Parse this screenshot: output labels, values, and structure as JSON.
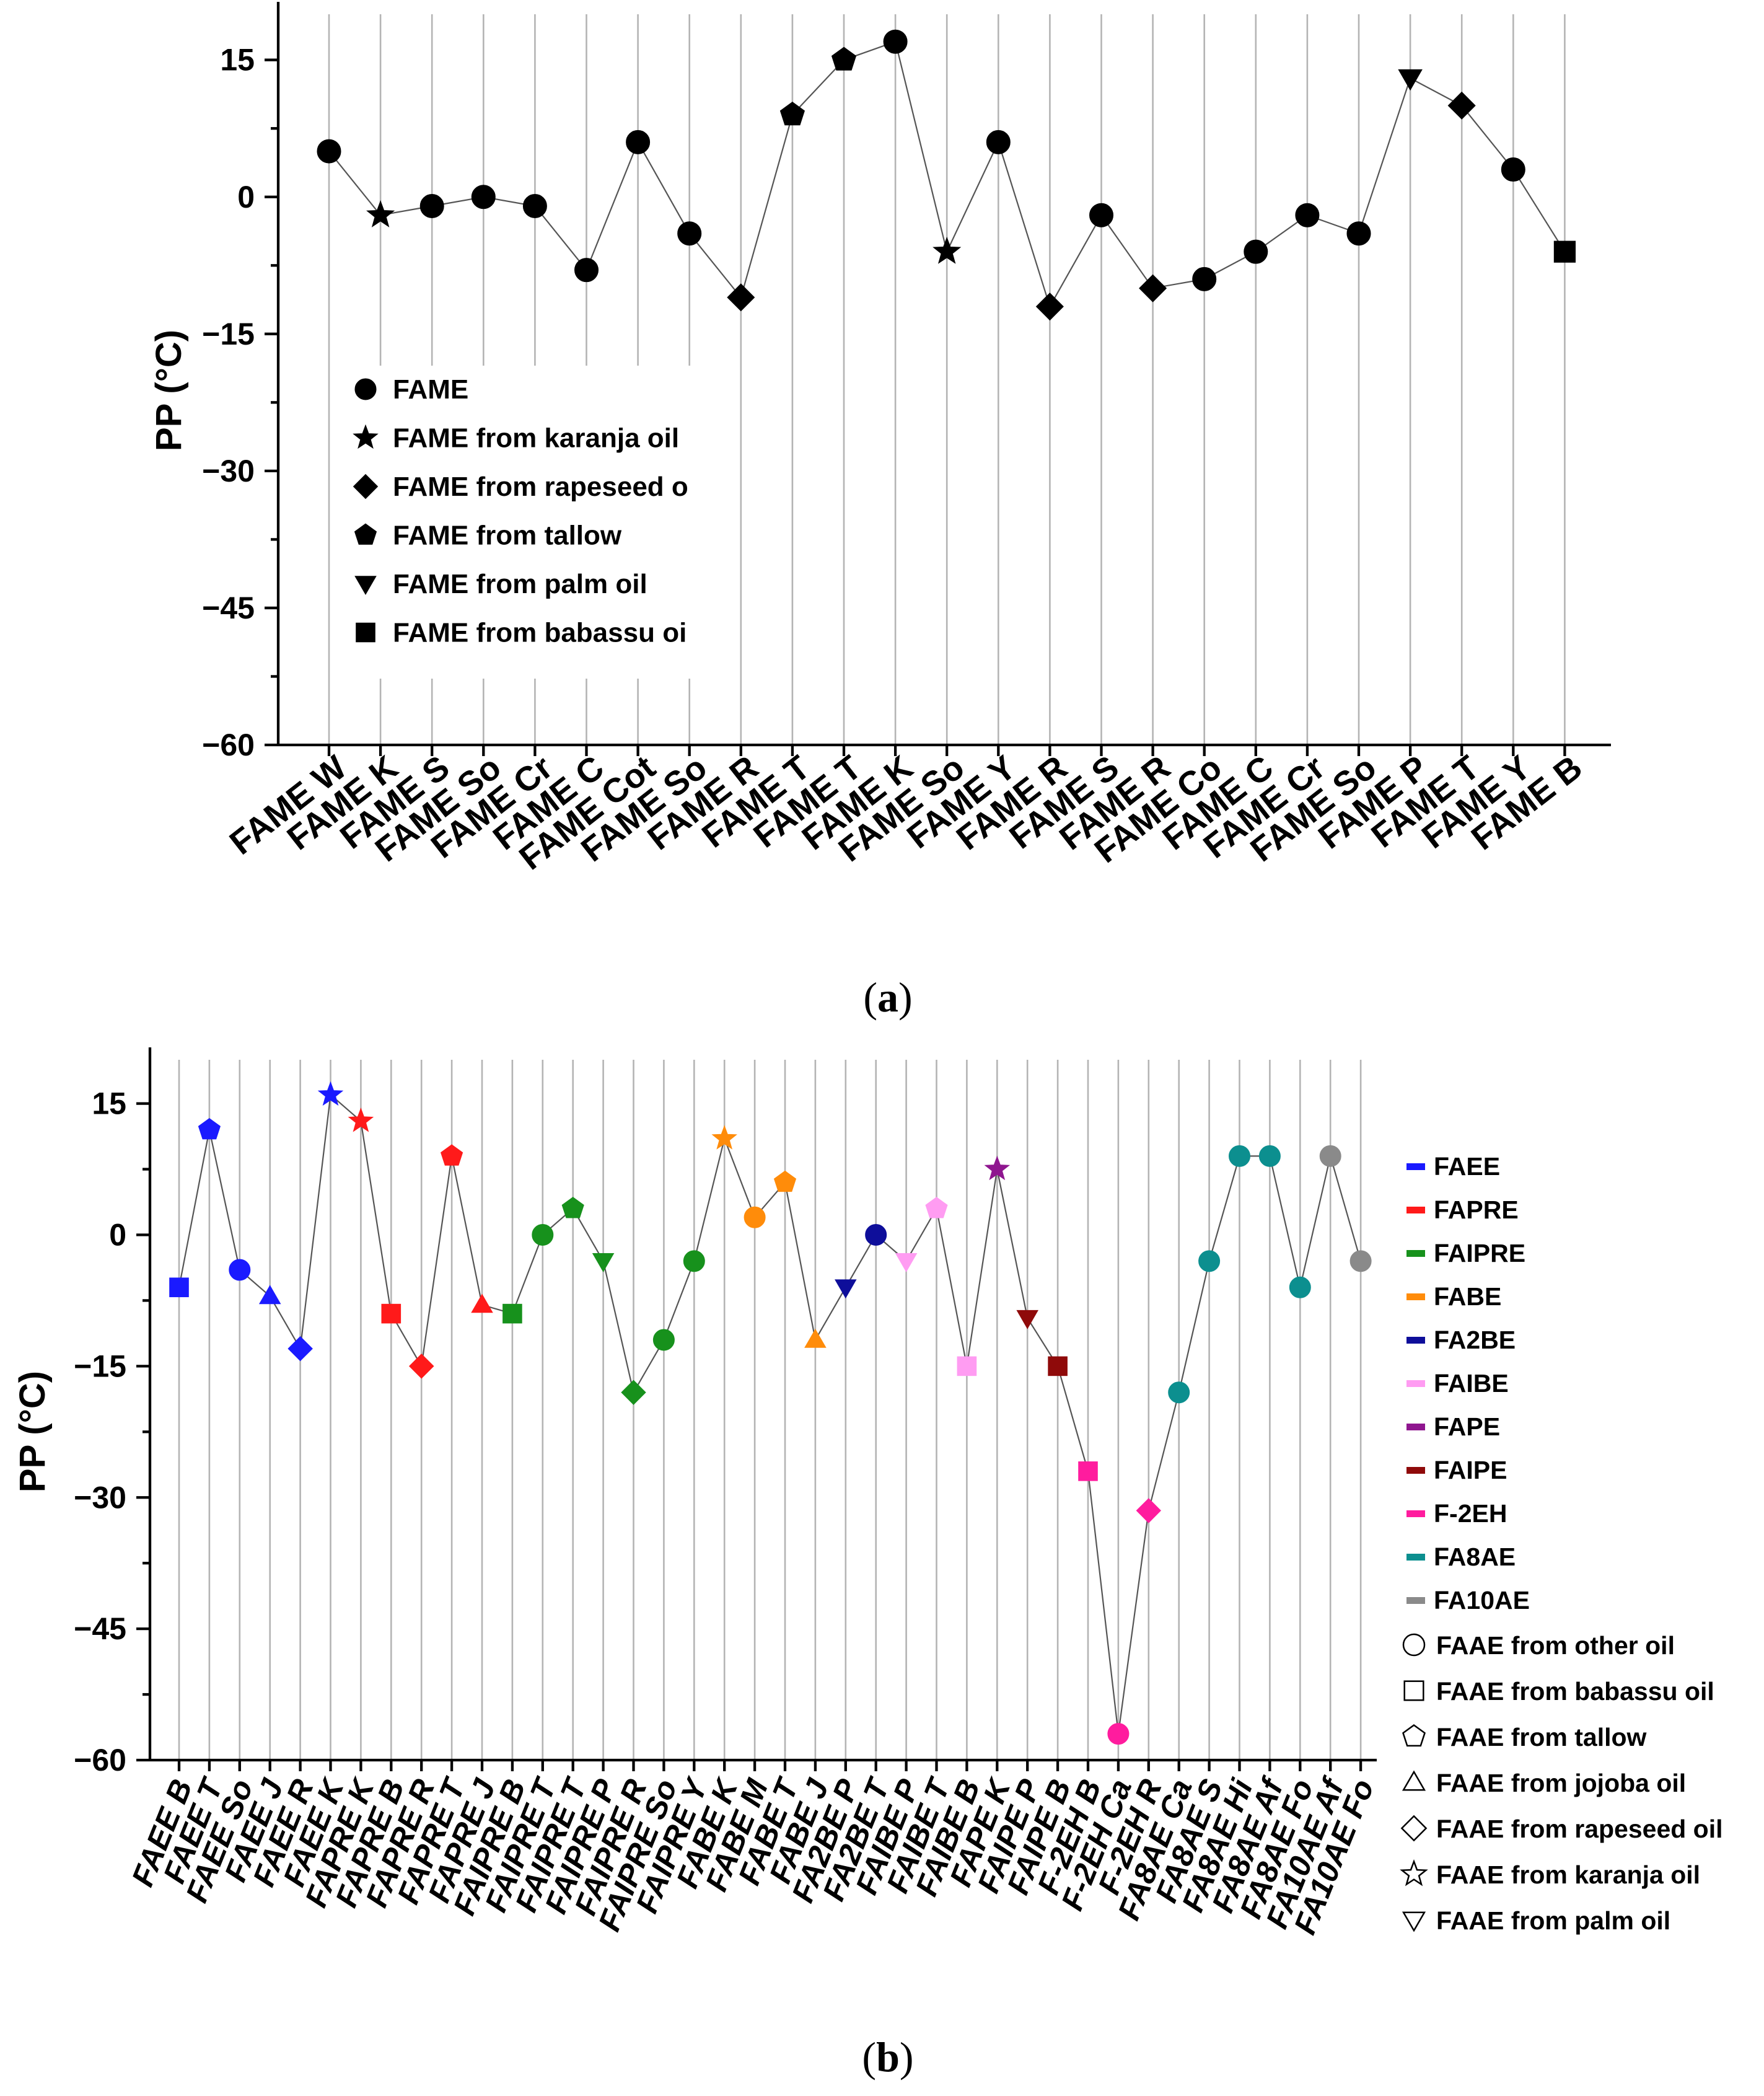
{
  "chart_data": [
    {
      "type": "scatter",
      "caption": "a",
      "ylabel": "PP (°C)",
      "ylim": [
        -60,
        20
      ],
      "yticks": [
        15,
        0,
        -15,
        -30,
        -45,
        -60
      ],
      "categories": [
        "FAME W",
        "FAME K",
        "FAME S",
        "FAME So",
        "FAME Cr",
        "FAME C",
        "FAME Cot",
        "FAME So",
        "FAME R",
        "FAME T",
        "FAME T",
        "FAME K",
        "FAME So",
        "FAME Y",
        "FAME R",
        "FAME S",
        "FAME R",
        "FAME Co",
        "FAME C",
        "FAME Cr",
        "FAME So",
        "FAME P",
        "FAME T",
        "FAME Y",
        "FAME B"
      ],
      "values": [
        5,
        -2,
        -1,
        0,
        -1,
        -8,
        6,
        -4,
        -11,
        9,
        15,
        17,
        -6,
        6,
        -12,
        -2,
        -10,
        -9,
        -6,
        -2,
        -4,
        13,
        10,
        3,
        -6
      ],
      "markers": [
        "circle",
        "star",
        "circle",
        "circle",
        "circle",
        "circle",
        "circle",
        "circle",
        "diamond",
        "pentagon",
        "pentagon",
        "circle",
        "star",
        "circle",
        "diamond",
        "circle",
        "diamond",
        "circle",
        "circle",
        "circle",
        "circle",
        "triangle-down",
        "diamond",
        "circle",
        "square"
      ],
      "legend": [
        {
          "label": "FAME",
          "marker": "circle"
        },
        {
          "label": "FAME from karanja oil",
          "marker": "star"
        },
        {
          "label": "FAME from rapeseed o",
          "marker": "diamond"
        },
        {
          "label": "FAME from tallow",
          "marker": "pentagon"
        },
        {
          "label": "FAME from palm oil",
          "marker": "triangle-down"
        },
        {
          "label": "FAME from babassu oi",
          "marker": "square"
        }
      ]
    },
    {
      "type": "scatter",
      "caption": "b",
      "ylabel": "PP (°C)",
      "ylim": [
        -60,
        20
      ],
      "yticks": [
        15,
        0,
        -15,
        -30,
        -45,
        -60
      ],
      "categories": [
        "FAEE B",
        "FAEE T",
        "FAEE So",
        "FAEE J",
        "FAEE R",
        "FAEE K",
        "FAPRE K",
        "FAPRE B",
        "FAPRE R",
        "FAPRE T",
        "FAPRE J",
        "FAIPRE B",
        "FAIPRE T",
        "FAIPRE T",
        "FAIPRE P",
        "FAIPRE R",
        "FAIPRE So",
        "FAIPRE Y",
        "FABE K",
        "FABE M",
        "FABE T",
        "FABE J",
        "FA2BE P",
        "FA2BE T",
        "FAIBE P",
        "FAIBE T",
        "FAIBE B",
        "FAPE K",
        "FAIPE P",
        "FAIPE B",
        "F-2EH B",
        "F-2EH Ca",
        "F-2EH R",
        "FA8AE Ca",
        "FA8AE S",
        "FA8AE Hi",
        "FA8AE Af",
        "FA8AE Fo",
        "FA10AE Af",
        "FA10AE Fo"
      ],
      "values": [
        -6,
        12,
        -4,
        -7,
        -13,
        16,
        13,
        -9,
        -15,
        9,
        -8,
        -9,
        0,
        3,
        -3,
        -18,
        -12,
        -3,
        11,
        2,
        6,
        -12,
        -6,
        0,
        -3,
        3,
        -15,
        7.5,
        -9.5,
        -15,
        -27,
        -57,
        -31.5,
        -18,
        -3,
        9,
        9,
        -6,
        9,
        -3
      ],
      "groups": [
        "FAEE",
        "FAEE",
        "FAEE",
        "FAEE",
        "FAEE",
        "FAEE",
        "FAPRE",
        "FAPRE",
        "FAPRE",
        "FAPRE",
        "FAPRE",
        "FAIPRE",
        "FAIPRE",
        "FAIPRE",
        "FAIPRE",
        "FAIPRE",
        "FAIPRE",
        "FAIPRE",
        "FABE",
        "FABE",
        "FABE",
        "FABE",
        "FA2BE",
        "FA2BE",
        "FAIBE",
        "FAIBE",
        "FAIBE",
        "FAPE",
        "FAIPE",
        "FAIPE",
        "F-2EH",
        "F-2EH",
        "F-2EH",
        "FA8AE",
        "FA8AE",
        "FA8AE",
        "FA8AE",
        "FA8AE",
        "FA10AE",
        "FA10AE"
      ],
      "markers": [
        "square",
        "pentagon",
        "circle",
        "triangle",
        "diamond",
        "star",
        "star",
        "square",
        "diamond",
        "pentagon",
        "triangle",
        "square",
        "circle",
        "pentagon",
        "triangle-down",
        "diamond",
        "circle",
        "circle",
        "star",
        "circle",
        "pentagon",
        "triangle",
        "triangle-down",
        "circle",
        "triangle-down",
        "pentagon",
        "square",
        "star",
        "triangle-down",
        "square",
        "square",
        "circle",
        "diamond",
        "circle",
        "circle",
        "circle",
        "circle",
        "circle",
        "circle",
        "circle"
      ],
      "group_legend": [
        {
          "label": "FAEE",
          "color": "#1a1aff"
        },
        {
          "label": "FAPRE",
          "color": "#ff1a1a"
        },
        {
          "label": "FAIPRE",
          "color": "#17911c"
        },
        {
          "label": "FABE",
          "color": "#ff8c0a"
        },
        {
          "label": "FA2BE",
          "color": "#0e0e9a"
        },
        {
          "label": "FAIBE",
          "color": "#ff9cf2"
        },
        {
          "label": "FAPE",
          "color": "#8f168f"
        },
        {
          "label": "FAIPE",
          "color": "#8f0a0a"
        },
        {
          "label": "F-2EH",
          "color": "#ff1c9e"
        },
        {
          "label": "FA8AE",
          "color": "#0c8f8f"
        },
        {
          "label": "FA10AE",
          "color": "#8a8a8a"
        }
      ],
      "marker_legend": [
        {
          "label": "FAAE from other oil",
          "marker": "circle"
        },
        {
          "label": "FAAE from babassu oil",
          "marker": "square"
        },
        {
          "label": "FAAE from tallow",
          "marker": "pentagon"
        },
        {
          "label": "FAAE from jojoba oil",
          "marker": "triangle"
        },
        {
          "label": "FAAE from rapeseed oil",
          "marker": "diamond"
        },
        {
          "label": "FAAE from karanja oil",
          "marker": "star"
        },
        {
          "label": "FAAE from palm oil",
          "marker": "triangle-down"
        }
      ]
    }
  ]
}
